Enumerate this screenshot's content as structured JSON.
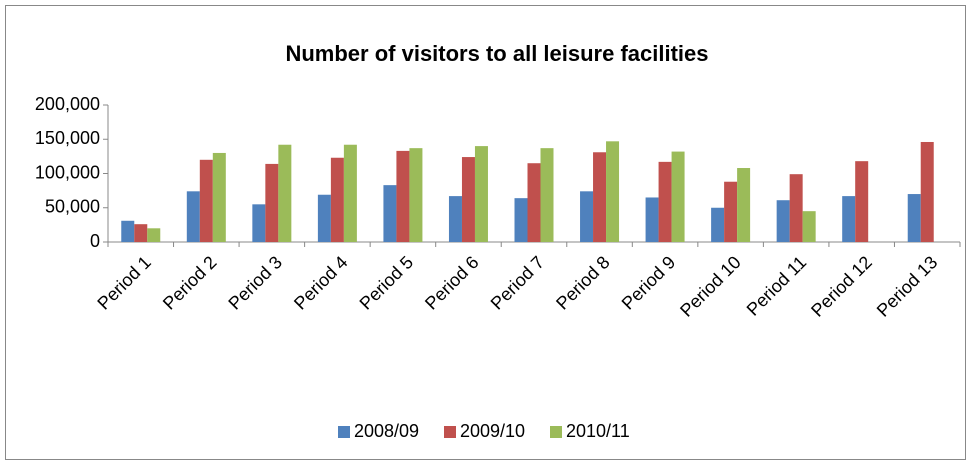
{
  "chart_data": {
    "type": "bar",
    "title": "Number of visitors to all leisure facilities",
    "categories": [
      "Period 1",
      "Period 2",
      "Period 3",
      "Period 4",
      "Period 5",
      "Period 6",
      "Period 7",
      "Period 8",
      "Period 9",
      "Period 10",
      "Period 11",
      "Period 12",
      "Period 13"
    ],
    "series": [
      {
        "name": "2008/09",
        "color": "#4f81bd",
        "values": [
          31000,
          74000,
          55000,
          69000,
          83000,
          67000,
          64000,
          74000,
          65000,
          50000,
          61000,
          67000,
          70000
        ]
      },
      {
        "name": "2009/10",
        "color": "#c0504d",
        "values": [
          26000,
          120000,
          114000,
          123000,
          133000,
          124000,
          115000,
          131000,
          117000,
          88000,
          99000,
          118000,
          146000
        ]
      },
      {
        "name": "2010/11",
        "color": "#9bbb59",
        "values": [
          20000,
          130000,
          142000,
          142000,
          137000,
          140000,
          137000,
          147000,
          132000,
          108000,
          45000,
          null,
          null
        ]
      }
    ],
    "ylim": [
      0,
      200000
    ],
    "yticks": [
      0,
      {
        "value": 50000,
        "label": "50,000"
      },
      {
        "value": 100000,
        "label": "100,000"
      },
      {
        "value": 150000,
        "label": "150,000"
      },
      {
        "value": 200000,
        "label": "200,000"
      }
    ],
    "grid": false,
    "legend": "bottom"
  }
}
